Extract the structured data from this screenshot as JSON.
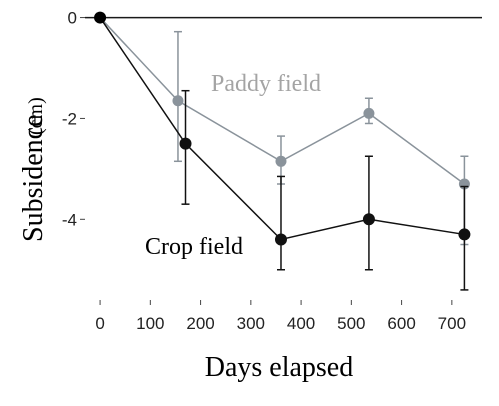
{
  "chart_data": {
    "type": "line",
    "xlabel": "Days elapsed",
    "ylabel": "Subsidence",
    "yunit": "(cm)",
    "xlim": [
      -30,
      760
    ],
    "ylim": [
      -5.6,
      0.15
    ],
    "x_ticks": [
      0,
      100,
      200,
      300,
      400,
      500,
      600,
      700
    ],
    "y_ticks": [
      0,
      -2,
      -4
    ],
    "grid": false,
    "reference_line": 0,
    "colors": {
      "paddy": "#8a939b",
      "crop": "#111111",
      "paddy_label": "#a4a4a4"
    },
    "series": [
      {
        "name": "Paddy field",
        "x": [
          0,
          155,
          360,
          535,
          725
        ],
        "y": [
          0,
          -1.65,
          -2.85,
          -1.9,
          -3.3
        ],
        "err_low": [
          0,
          -2.85,
          -3.3,
          -2.1,
          -4.5
        ],
        "err_high": [
          0,
          -0.28,
          -2.35,
          -1.6,
          -2.75
        ]
      },
      {
        "name": "Crop field",
        "x": [
          0,
          170,
          360,
          535,
          725
        ],
        "y": [
          0,
          -2.5,
          -4.4,
          -4.0,
          -4.3
        ],
        "err_low": [
          0,
          -3.7,
          -5.0,
          -5.0,
          -5.4
        ],
        "err_high": [
          0,
          -1.45,
          -3.15,
          -2.75,
          -3.35
        ]
      }
    ]
  }
}
